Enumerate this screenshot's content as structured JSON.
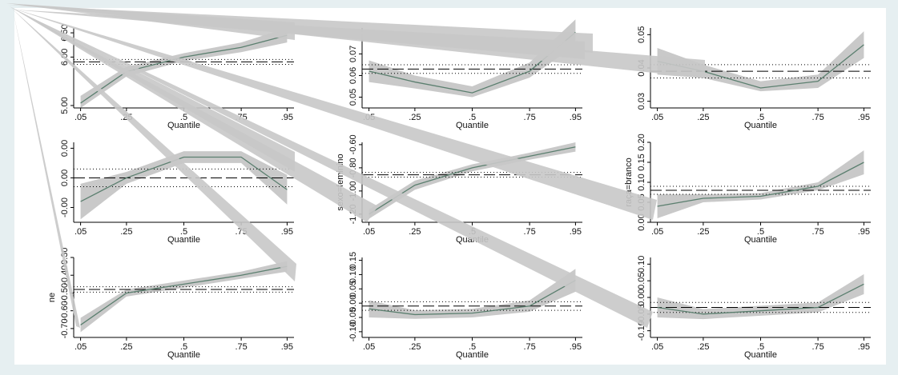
{
  "chart_data": [
    {
      "type": "line",
      "x": [
        0.05,
        0.25,
        0.5,
        0.75,
        0.95
      ],
      "values": [
        5.05,
        5.7,
        6.0,
        6.2,
        6.45
      ],
      "ci_lower": [
        4.95,
        5.6,
        5.92,
        6.1,
        6.3
      ],
      "ci_upper": [
        5.2,
        5.8,
        6.08,
        6.3,
        6.6
      ],
      "ols": 5.9,
      "ols_ci": [
        5.85,
        5.95
      ],
      "ylim": [
        4.95,
        6.6
      ],
      "yticks": [
        {
          "value": 5.0,
          "label": "5.00"
        },
        {
          "value": 6.0,
          "label": "6.00"
        },
        {
          "value": 6.5,
          "label": "6.50"
        }
      ],
      "xlim": [
        0.02,
        0.98
      ],
      "xticks": [
        {
          "value": 0.05,
          "label": ".05"
        },
        {
          "value": 0.25,
          "label": ".25"
        },
        {
          "value": 0.5,
          "label": ".5"
        },
        {
          "value": 0.75,
          "label": ".75"
        },
        {
          "value": 0.95,
          "label": ".95"
        }
      ],
      "xlabel": "Quantile",
      "color": "#5b7f6f"
    },
    {
      "type": "line",
      "x": [
        0.05,
        0.25,
        0.5,
        0.75,
        0.95
      ],
      "values": [
        0.062,
        0.057,
        0.052,
        0.062,
        0.08
      ],
      "ci_lower": [
        0.057,
        0.054,
        0.05,
        0.059,
        0.074
      ],
      "ci_upper": [
        0.067,
        0.06,
        0.055,
        0.066,
        0.086
      ],
      "ols": 0.063,
      "ols_ci": [
        0.061,
        0.065
      ],
      "ylim": [
        0.045,
        0.082
      ],
      "yticks": [
        {
          "value": 0.05,
          "label": "0.05"
        },
        {
          "value": 0.06,
          "label": "0.06"
        },
        {
          "value": 0.07,
          "label": "0.07"
        }
      ],
      "xlim": [
        0.02,
        0.98
      ],
      "xticks": [
        {
          "value": 0.05,
          "label": ".05"
        },
        {
          "value": 0.25,
          "label": ".25"
        },
        {
          "value": 0.5,
          "label": ".5"
        },
        {
          "value": 0.75,
          "label": ".75"
        },
        {
          "value": 0.95,
          "label": ".95"
        }
      ],
      "xlabel": "Quantile",
      "color": "#5b7f6f"
    },
    {
      "type": "line",
      "x": [
        0.05,
        0.25,
        0.5,
        0.75,
        0.95
      ],
      "values": [
        0.042,
        0.039,
        0.034,
        0.036,
        0.047
      ],
      "ci_lower": [
        0.038,
        0.037,
        0.033,
        0.034,
        0.043
      ],
      "ci_upper": [
        0.046,
        0.041,
        0.036,
        0.038,
        0.051
      ],
      "ols": 0.039,
      "ols_ci": [
        0.037,
        0.041
      ],
      "ylim": [
        0.028,
        0.052
      ],
      "yticks": [
        {
          "value": 0.03,
          "label": "0.03"
        },
        {
          "value": 0.04,
          "label": "0.04"
        },
        {
          "value": 0.05,
          "label": "0.05"
        }
      ],
      "xlim": [
        0.02,
        0.98
      ],
      "xticks": [
        {
          "value": 0.05,
          "label": ".05"
        },
        {
          "value": 0.25,
          "label": ".25"
        },
        {
          "value": 0.5,
          "label": ".5"
        },
        {
          "value": 0.75,
          "label": ".75"
        },
        {
          "value": 0.95,
          "label": ".95"
        }
      ],
      "xlabel": "Quantile",
      "color": "#5b7f6f"
    },
    {
      "type": "line",
      "x": [
        0.05,
        0.25,
        0.5,
        0.75,
        0.95
      ],
      "values": [
        -0.0008,
        0.0,
        0.0007,
        0.0007,
        -0.0004
      ],
      "ci_lower": [
        -0.0014,
        -0.0002,
        0.0005,
        0.0005,
        -0.0009
      ],
      "ci_upper": [
        -0.0002,
        0.0002,
        0.0009,
        0.0009,
        0.0001
      ],
      "ols": 0.0,
      "ols_ci": [
        -0.0003,
        0.0003
      ],
      "ylim": [
        -0.0015,
        0.0012
      ],
      "yticks": [
        {
          "value": -0.001,
          "label": "-0.00"
        },
        {
          "value": 0.0,
          "label": "0.00"
        },
        {
          "value": 0.001,
          "label": "0.00"
        }
      ],
      "xlim": [
        0.02,
        0.98
      ],
      "xticks": [
        {
          "value": 0.05,
          "label": ".05"
        },
        {
          "value": 0.25,
          "label": ".25"
        },
        {
          "value": 0.5,
          "label": ".5"
        },
        {
          "value": 0.75,
          "label": ".75"
        },
        {
          "value": 0.95,
          "label": ".95"
        }
      ],
      "xlabel": "Quantile",
      "color": "#5b7f6f"
    },
    {
      "type": "line",
      "x": [
        0.05,
        0.25,
        0.5,
        0.75,
        0.95
      ],
      "values": [
        -1.2,
        -0.95,
        -0.8,
        -0.7,
        -0.62
      ],
      "ci_lower": [
        -1.24,
        -0.99,
        -0.83,
        -0.73,
        -0.66
      ],
      "ci_upper": [
        -1.16,
        -0.91,
        -0.77,
        -0.67,
        -0.58
      ],
      "ols": -0.86,
      "ols_ci": [
        -0.88,
        -0.84
      ],
      "ylim": [
        -1.27,
        -0.58
      ],
      "yticks": [
        {
          "value": -1.2,
          "label": "-1.20"
        },
        {
          "value": -1.0,
          "label": "-1.00"
        },
        {
          "value": -0.8,
          "label": "-0.80"
        },
        {
          "value": -0.6,
          "label": "-0.60"
        }
      ],
      "xlim": [
        0.02,
        0.98
      ],
      "xticks": [
        {
          "value": 0.05,
          "label": ".05"
        },
        {
          "value": 0.25,
          "label": ".25"
        },
        {
          "value": 0.5,
          "label": ".5"
        },
        {
          "value": 0.75,
          "label": ".75"
        },
        {
          "value": 0.95,
          "label": ".95"
        }
      ],
      "xlabel": "Quantile",
      "ylabel": "sexo=feminino",
      "color": "#5b7f6f"
    },
    {
      "type": "line",
      "x": [
        0.05,
        0.25,
        0.5,
        0.75,
        0.95
      ],
      "values": [
        0.04,
        0.06,
        0.065,
        0.09,
        0.15
      ],
      "ci_lower": [
        0.01,
        0.05,
        0.057,
        0.08,
        0.12
      ],
      "ci_upper": [
        0.07,
        0.07,
        0.073,
        0.1,
        0.18
      ],
      "ols": 0.08,
      "ols_ci": [
        0.07,
        0.09
      ],
      "ylim": [
        0.0,
        0.2
      ],
      "yticks": [
        {
          "value": 0.0,
          "label": "0.00"
        },
        {
          "value": 0.05,
          "label": "0.05"
        },
        {
          "value": 0.1,
          "label": "0.10"
        },
        {
          "value": 0.15,
          "label": "0.15"
        },
        {
          "value": 0.2,
          "label": "0.20"
        }
      ],
      "xlim": [
        0.02,
        0.98
      ],
      "xticks": [
        {
          "value": 0.05,
          "label": ".05"
        },
        {
          "value": 0.25,
          "label": ".25"
        },
        {
          "value": 0.5,
          "label": ".5"
        },
        {
          "value": 0.75,
          "label": ".75"
        },
        {
          "value": 0.95,
          "label": ".95"
        }
      ],
      "xlabel": "Quantile",
      "ylabel": "raça=branco",
      "color": "#5b7f6f"
    },
    {
      "type": "line",
      "x": [
        0.05,
        0.25,
        0.5,
        0.75,
        0.95
      ],
      "values": [
        -0.68,
        -0.5,
        -0.45,
        -0.4,
        -0.35
      ],
      "ci_lower": [
        -0.72,
        -0.52,
        -0.47,
        -0.42,
        -0.38
      ],
      "ci_upper": [
        -0.64,
        -0.48,
        -0.43,
        -0.38,
        -0.32
      ],
      "ols": -0.48,
      "ols_ci": [
        -0.495,
        -0.465
      ],
      "ylim": [
        -0.75,
        -0.3
      ],
      "yticks": [
        {
          "value": -0.7,
          "label": "-0.70"
        },
        {
          "value": -0.6,
          "label": "-0.60"
        },
        {
          "value": -0.5,
          "label": "-0.50"
        },
        {
          "value": -0.4,
          "label": "-0.40"
        },
        {
          "value": -0.3,
          "label": "-0.30"
        }
      ],
      "xlim": [
        0.02,
        0.98
      ],
      "xticks": [
        {
          "value": 0.05,
          "label": ".05"
        },
        {
          "value": 0.25,
          "label": ".25"
        },
        {
          "value": 0.5,
          "label": ".5"
        },
        {
          "value": 0.75,
          "label": ".75"
        },
        {
          "value": 0.95,
          "label": ".95"
        }
      ],
      "xlabel": "Quantile",
      "ylabel": "ne",
      "color": "#5b7f6f"
    },
    {
      "type": "line",
      "x": [
        0.05,
        0.25,
        0.5,
        0.75,
        0.95
      ],
      "values": [
        -0.02,
        -0.04,
        -0.035,
        -0.01,
        0.08
      ],
      "ci_lower": [
        -0.05,
        -0.055,
        -0.05,
        -0.03,
        0.04
      ],
      "ci_upper": [
        0.01,
        -0.025,
        -0.02,
        0.01,
        0.12
      ],
      "ols": -0.01,
      "ols_ci": [
        -0.025,
        0.005
      ],
      "ylim": [
        -0.12,
        0.16
      ],
      "yticks": [
        {
          "value": -0.1,
          "label": "-0.10"
        },
        {
          "value": -0.05,
          "label": "-0.05"
        },
        {
          "value": 0.0,
          "label": "0.00"
        },
        {
          "value": 0.05,
          "label": "0.05"
        },
        {
          "value": 0.1,
          "label": "0.10"
        },
        {
          "value": 0.15,
          "label": "0.15"
        }
      ],
      "xlim": [
        0.02,
        0.98
      ],
      "xticks": [
        {
          "value": 0.05,
          "label": ".05"
        },
        {
          "value": 0.25,
          "label": ".25"
        },
        {
          "value": 0.5,
          "label": ".5"
        },
        {
          "value": 0.75,
          "label": ".75"
        },
        {
          "value": 0.95,
          "label": ".95"
        }
      ],
      "xlabel": "Quantile",
      "color": "#5b7f6f"
    },
    {
      "type": "line",
      "x": [
        0.05,
        0.25,
        0.5,
        0.75,
        0.95
      ],
      "values": [
        -0.03,
        -0.05,
        -0.04,
        -0.03,
        0.04
      ],
      "ci_lower": [
        -0.06,
        -0.065,
        -0.055,
        -0.045,
        0.01
      ],
      "ci_upper": [
        0.0,
        -0.035,
        -0.025,
        -0.015,
        0.07
      ],
      "ols": -0.03,
      "ols_ci": [
        -0.045,
        -0.015
      ],
      "ylim": [
        -0.12,
        0.12
      ],
      "yticks": [
        {
          "value": -0.1,
          "label": "-0.10"
        },
        {
          "value": -0.05,
          "label": "-0.05"
        },
        {
          "value": 0.0,
          "label": "0.00"
        },
        {
          "value": 0.05,
          "label": "0.05"
        },
        {
          "value": 0.1,
          "label": "0.10"
        }
      ],
      "xlim": [
        0.02,
        0.98
      ],
      "xticks": [
        {
          "value": 0.05,
          "label": ".05"
        },
        {
          "value": 0.25,
          "label": ".25"
        },
        {
          "value": 0.5,
          "label": ".5"
        },
        {
          "value": 0.75,
          "label": ".75"
        },
        {
          "value": 0.95,
          "label": ".95"
        }
      ],
      "xlabel": "Quantile",
      "color": "#5b7f6f"
    }
  ]
}
